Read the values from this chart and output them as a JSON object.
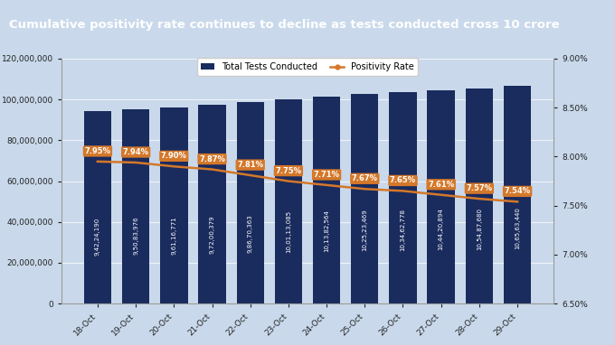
{
  "title": "Cumulative positivity rate continues to decline as tests conducted cross 10 crore",
  "categories": [
    "18-Oct",
    "19-Oct",
    "20-Oct",
    "21-Oct",
    "22-Oct",
    "23-Oct",
    "24-Oct",
    "25-Oct",
    "26-Oct",
    "27-Oct",
    "28-Oct",
    "29-Oct"
  ],
  "bar_values": [
    94224190,
    95083976,
    96116771,
    97200379,
    98670363,
    100113085,
    101382564,
    102523469,
    103462778,
    104420894,
    105487680,
    106563440
  ],
  "bar_labels": [
    "9,42,24,190",
    "9,50,83,976",
    "9,61,16,771",
    "9,72,00,379",
    "9,86,70,363",
    "10,01,13,085",
    "10,13,82,564",
    "10,25,23,469",
    "10,34,62,778",
    "10,44,20,894",
    "10,54,87,680",
    "10,65,63,440"
  ],
  "positivity_rates": [
    7.95,
    7.94,
    7.9,
    7.87,
    7.81,
    7.75,
    7.71,
    7.67,
    7.65,
    7.61,
    7.57,
    7.54
  ],
  "positivity_labels": [
    "7.95%",
    "7.94%",
    "7.90%",
    "7.87%",
    "7.81%",
    "7.75%",
    "7.71%",
    "7.67%",
    "7.65%",
    "7.61%",
    "7.57%",
    "7.54%"
  ],
  "bar_color": "#1a2b5e",
  "line_color": "#d4782a",
  "label_color_bar": "#ffffff",
  "label_color_rate": "#ffffff",
  "background_color": "#c9d9eb",
  "title_bg_color": "#1a2b5e",
  "title_text_color": "#ffffff",
  "legend_bar_label": "Total Tests Conducted",
  "legend_line_label": "Positivity Rate",
  "ylim_left": [
    0,
    120000000
  ],
  "ylim_right": [
    6.5,
    9.0
  ],
  "yticks_left": [
    0,
    20000000,
    40000000,
    60000000,
    80000000,
    100000000,
    120000000
  ],
  "yticks_right": [
    6.5,
    7.0,
    7.5,
    8.0,
    8.5,
    9.0
  ],
  "figsize": [
    6.8,
    3.82
  ],
  "dpi": 100
}
